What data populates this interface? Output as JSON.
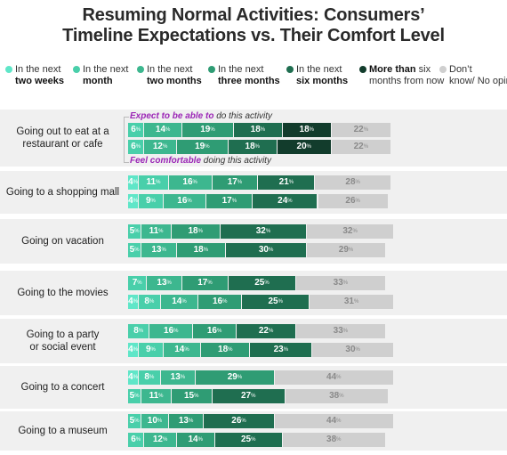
{
  "chart_data": {
    "type": "bar",
    "orientation": "horizontal",
    "stacked": true,
    "title": "Resuming Normal Activities: Consumers’ Timeline Expectations vs. Their Comfort Level",
    "title_lines": [
      "Resuming Normal Activities: Consumers’",
      "Timeline Expectations vs. Their Comfort Level"
    ],
    "legend_position": "top",
    "segments": [
      {
        "light": "In the next",
        "bold": "two weeks",
        "color": "#5fe6c8"
      },
      {
        "light": "In the next",
        "bold": "month",
        "color": "#49cfaa"
      },
      {
        "light": "In the next",
        "bold": "two months",
        "color": "#3db78f"
      },
      {
        "light": "In the next",
        "bold": "three months",
        "color": "#2f9c74"
      },
      {
        "light": "In the next",
        "bold": "six months",
        "color": "#1f6e50"
      },
      {
        "light": "months from now",
        "bold": "More than",
        "bold_suffix": " six",
        "color": "#123c2c"
      },
      {
        "light": "Don’t know/ No opinion",
        "bold": "",
        "color": "#cfcfcf"
      }
    ],
    "annotations": {
      "expect_bold": "Expect to be able to",
      "expect_rest": " do this activity",
      "comfort_bold": "Feel comfortable",
      "comfort_rest": " doing this activity"
    },
    "categories": [
      {
        "label_lines": [
          "Going out to eat at a",
          "restaurant or cafe"
        ],
        "expect": [
          6,
          14,
          19,
          18,
          18,
          22
        ],
        "comfortable": [
          6,
          12,
          19,
          18,
          20,
          22
        ],
        "expect_start": 1,
        "comfort_start": 1
      },
      {
        "label_lines": [
          "Going to a shopping mall"
        ],
        "expect": [
          4,
          11,
          16,
          17,
          21,
          28
        ],
        "comfortable": [
          4,
          9,
          16,
          17,
          24,
          26
        ],
        "expect_start": 0,
        "comfort_start": 0
      },
      {
        "label_lines": [
          "Going on vacation"
        ],
        "expect": [
          5,
          11,
          18,
          32,
          32
        ],
        "comfortable": [
          5,
          13,
          18,
          30,
          29
        ],
        "expect_start": 1,
        "comfort_start": 1
      },
      {
        "label_lines": [
          "Going to the movies"
        ],
        "expect": [
          7,
          13,
          17,
          25,
          33
        ],
        "comfortable": [
          4,
          8,
          14,
          16,
          25,
          31
        ],
        "expect_start": 1,
        "comfort_start": 0
      },
      {
        "label_lines": [
          "Going to a party",
          "or social event"
        ],
        "expect": [
          8,
          16,
          16,
          22,
          33
        ],
        "comfortable": [
          4,
          9,
          14,
          18,
          23,
          30
        ],
        "expect_start": 1,
        "comfort_start": 0
      },
      {
        "label_lines": [
          "Going to a concert"
        ],
        "expect": [
          4,
          8,
          13,
          29,
          44
        ],
        "comfortable": [
          5,
          11,
          15,
          27,
          38
        ],
        "expect_start": 0,
        "comfort_start": 1
      },
      {
        "label_lines": [
          "Going to a museum"
        ],
        "expect": [
          5,
          10,
          13,
          26,
          44
        ],
        "comfortable": [
          6,
          12,
          14,
          25,
          38
        ],
        "expect_start": 1,
        "comfort_start": 1
      }
    ],
    "value_suffix": "%",
    "xlim": [
      0,
      100
    ]
  }
}
